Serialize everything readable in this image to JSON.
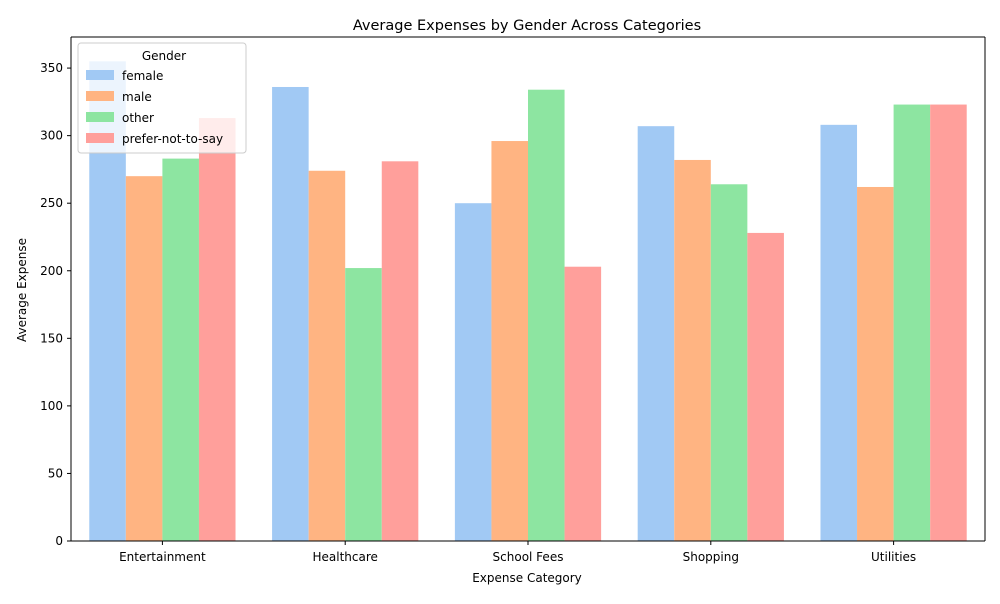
{
  "chart_data": {
    "type": "bar",
    "title": "Average Expenses by Gender Across Categories",
    "xlabel": "Expense Category",
    "ylabel": "Average Expense",
    "categories": [
      "Entertainment",
      "Healthcare",
      "School Fees",
      "Shopping",
      "Utilities"
    ],
    "ylim": [
      0,
      373
    ],
    "yticks": [
      0,
      50,
      100,
      150,
      200,
      250,
      300,
      350
    ],
    "grid": false,
    "legend": {
      "title": "Gender",
      "placement": "top-left"
    },
    "series": [
      {
        "name": "female",
        "color": "#a1c9f4",
        "values": [
          355,
          336,
          250,
          307,
          308
        ]
      },
      {
        "name": "male",
        "color": "#ffb482",
        "values": [
          270,
          274,
          296,
          282,
          262
        ]
      },
      {
        "name": "other",
        "color": "#8de5a1",
        "values": [
          283,
          202,
          334,
          264,
          323
        ]
      },
      {
        "name": "prefer-not-to-say",
        "color": "#ff9f9b",
        "values": [
          313,
          281,
          203,
          228,
          323
        ]
      }
    ]
  }
}
